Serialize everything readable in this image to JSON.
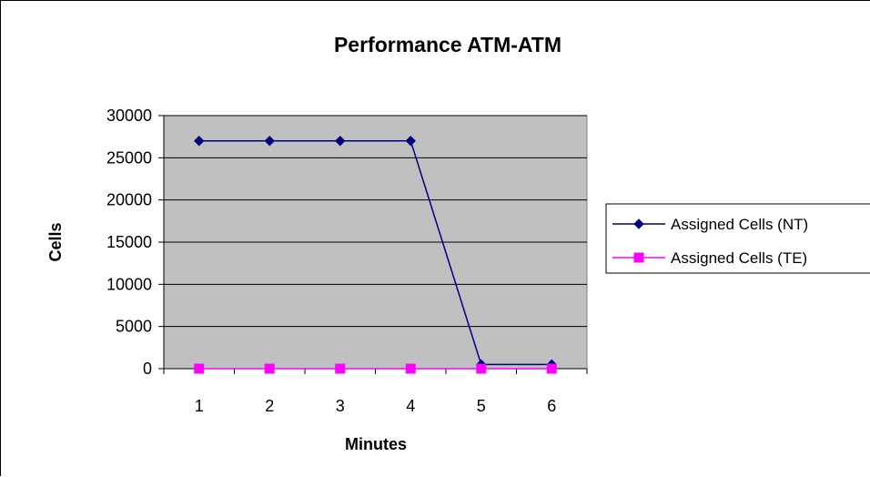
{
  "chart_data": {
    "type": "line",
    "title": "Performance ATM-ATM",
    "xlabel": "Minutes",
    "ylabel": "Cells",
    "categories": [
      "1",
      "2",
      "3",
      "4",
      "5",
      "6"
    ],
    "ylim": [
      0,
      30000
    ],
    "yticks": [
      0,
      5000,
      10000,
      15000,
      20000,
      25000,
      30000
    ],
    "grid": true,
    "legend_position": "right",
    "plot_background": "#c0c0c0",
    "series": [
      {
        "name": "Assigned Cells (NT)",
        "values": [
          27000,
          27000,
          27000,
          27000,
          500,
          500
        ],
        "color": "#000080",
        "marker": "diamond"
      },
      {
        "name": "Assigned Cells (TE)",
        "values": [
          0,
          0,
          0,
          0,
          0,
          0
        ],
        "color": "#ff00ff",
        "marker": "square"
      }
    ]
  }
}
